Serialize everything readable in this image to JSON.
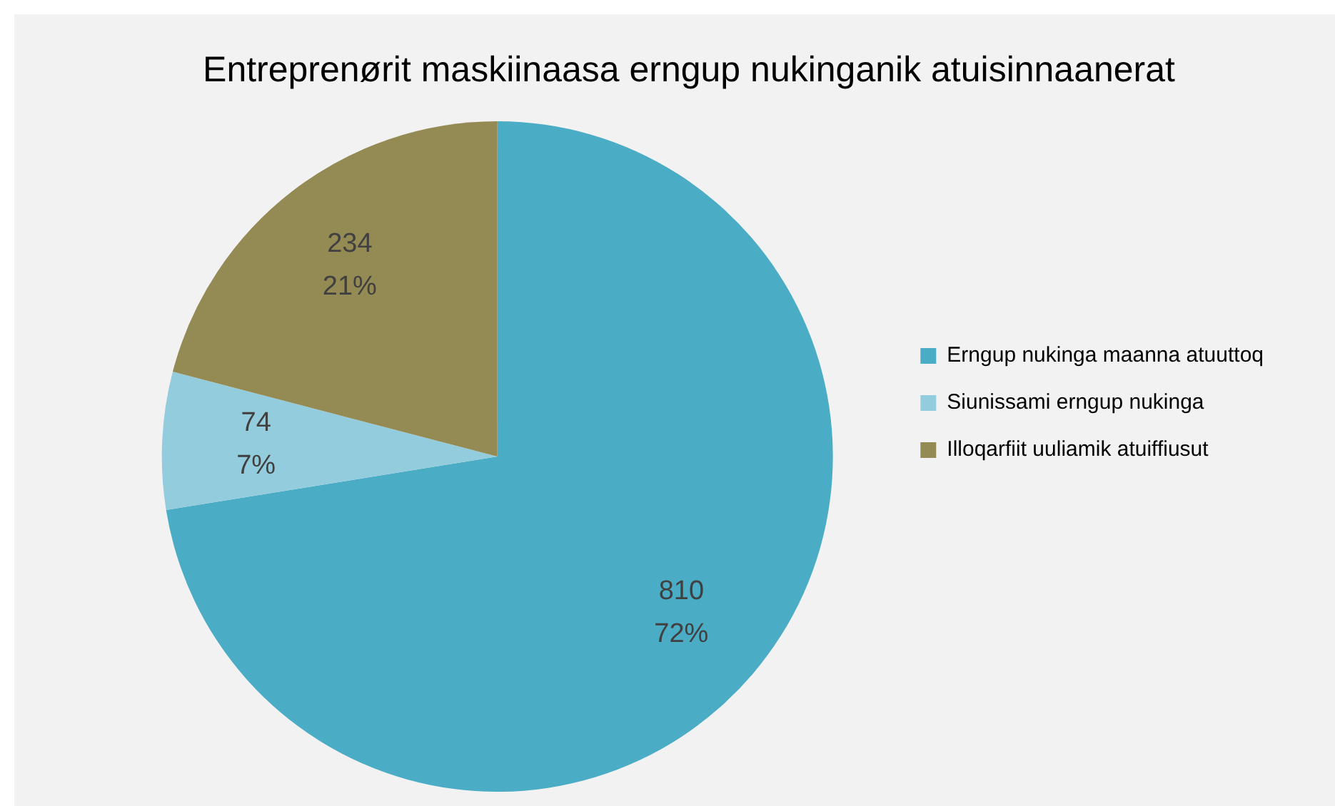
{
  "chart_data": {
    "type": "pie",
    "title": "Entreprenørit maskiinaasa erngup nukinganik atuisinnaanerat",
    "categories": [
      "Erngup nukinga maanna atuuttoq",
      "Siunissami erngup nukinga",
      "Illoqarfiit uuliamik atuiffiusut"
    ],
    "values": [
      810,
      74,
      234
    ],
    "colors": [
      "#4bacc6",
      "#93cddd",
      "#948a54"
    ],
    "value_labels": [
      "810\n72%",
      "74\n7%",
      "234\n21%"
    ],
    "legend": "right"
  }
}
